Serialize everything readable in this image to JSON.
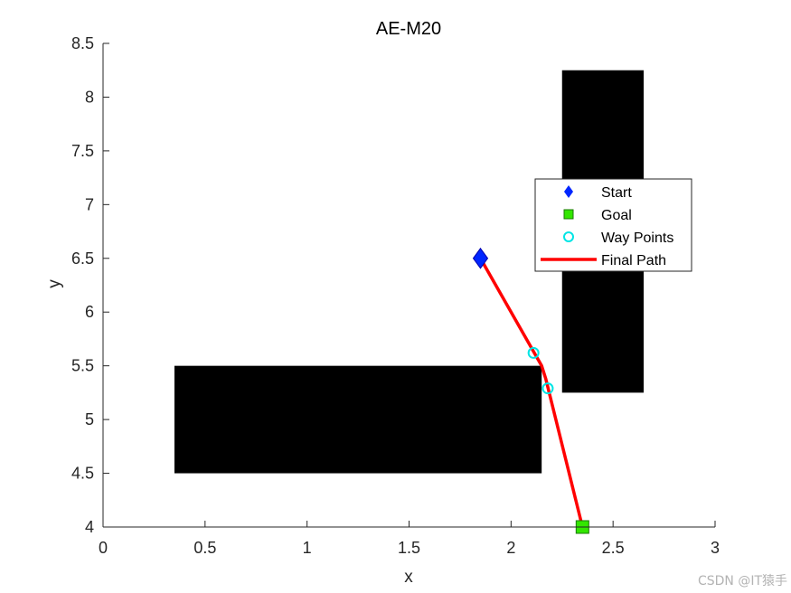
{
  "chart_data": {
    "type": "scatter",
    "title": "AE-M20",
    "xlabel": "x",
    "ylabel": "y",
    "xlim": [
      0,
      3
    ],
    "ylim": [
      4,
      8.5
    ],
    "xticks": [
      "0",
      "0.5",
      "1",
      "1.5",
      "2",
      "2.5",
      "3"
    ],
    "xtick_values": [
      0,
      0.5,
      1,
      1.5,
      2,
      2.5,
      3
    ],
    "yticks": [
      "4",
      "4.5",
      "5",
      "5.5",
      "6",
      "6.5",
      "7",
      "7.5",
      "8",
      "8.5"
    ],
    "ytick_values": [
      4,
      4.5,
      5,
      5.5,
      6,
      6.5,
      7,
      7.5,
      8,
      8.5
    ],
    "grid": false,
    "legend_position": "upper right",
    "obstacles": [
      {
        "x": [
          0.35,
          2.15
        ],
        "y": [
          4.5,
          5.5
        ],
        "color": "#000000"
      },
      {
        "x": [
          2.25,
          2.65
        ],
        "y": [
          5.25,
          8.25
        ],
        "color": "#000000"
      }
    ],
    "series": [
      {
        "name": "Start",
        "marker": "diamond",
        "color": "#0026ff",
        "x": [
          1.85
        ],
        "y": [
          6.5
        ]
      },
      {
        "name": "Goal",
        "marker": "square",
        "color": "#33e600",
        "x": [
          2.35
        ],
        "y": [
          4.0
        ]
      },
      {
        "name": "Way Points",
        "marker": "circle-open",
        "color": "#00e5e5",
        "x": [
          2.11,
          2.18
        ],
        "y": [
          5.62,
          5.29
        ]
      },
      {
        "name": "Final Path",
        "marker": "line",
        "color": "#ff0000",
        "x": [
          1.85,
          2.15,
          2.17,
          2.35
        ],
        "y": [
          6.5,
          5.5,
          5.38,
          4.0
        ]
      }
    ]
  },
  "watermark": "CSDN @IT猿手"
}
